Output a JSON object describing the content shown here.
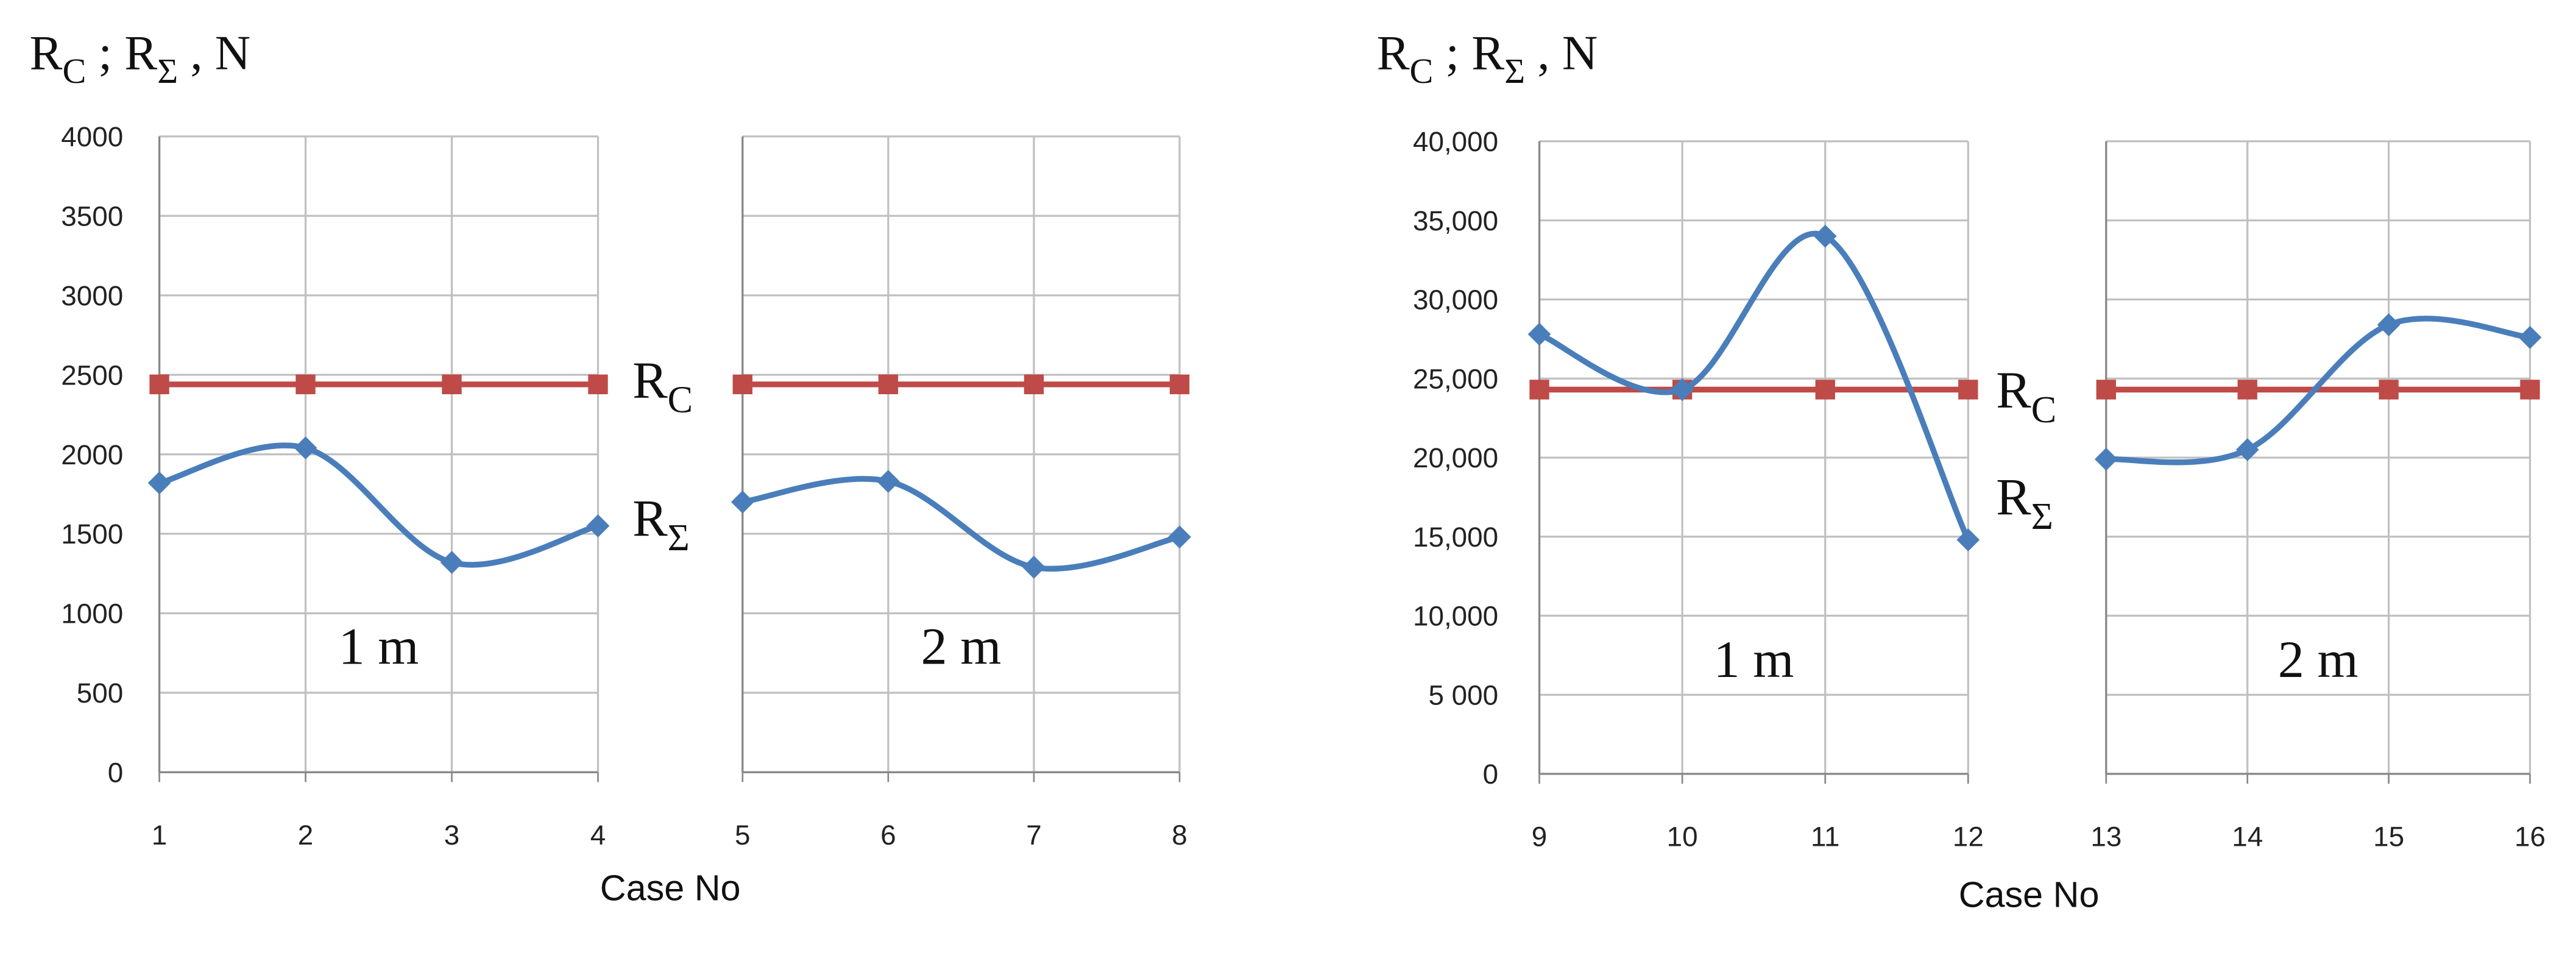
{
  "chart_data": [
    {
      "type": "line",
      "title_parts": [
        "R",
        "C",
        " ; R",
        "Σ",
        " , N"
      ],
      "x_label": "Case No",
      "ylim": [
        0,
        4000
      ],
      "yticks": [
        0,
        500,
        1000,
        1500,
        2000,
        2500,
        3000,
        3500,
        4000
      ],
      "grid": true,
      "series_styles": [
        {
          "name": [
            "R",
            "C"
          ],
          "color": "#be4b48",
          "marker": "square",
          "smooth": false
        },
        {
          "name": [
            "R",
            "Σ"
          ],
          "color": "#4a7ebb",
          "marker": "diamond",
          "smooth": true
        }
      ],
      "panels": [
        {
          "label": "1 m",
          "x": [
            1,
            2,
            3,
            4
          ],
          "series": [
            {
              "values": [
                2440,
                2440,
                2440,
                2440
              ]
            },
            {
              "values": [
                1820,
                2040,
                1320,
                1550
              ]
            }
          ]
        },
        {
          "label": "2 m",
          "x": [
            5,
            6,
            7,
            8
          ],
          "series": [
            {
              "values": [
                2440,
                2440,
                2440,
                2440
              ]
            },
            {
              "values": [
                1700,
                1830,
                1290,
                1480
              ]
            }
          ]
        }
      ]
    },
    {
      "type": "line",
      "title_parts": [
        "R",
        "C",
        " ; R",
        "Σ",
        " , N"
      ],
      "x_label": "Case No",
      "ylim": [
        0,
        40000
      ],
      "yticks": [
        0,
        {
          "value": 5000,
          "label": "5 000"
        },
        {
          "value": 10000,
          "label": "10,000"
        },
        {
          "value": 15000,
          "label": "15,000"
        },
        {
          "value": 20000,
          "label": "20,000"
        },
        {
          "value": 25000,
          "label": "25,000"
        },
        {
          "value": 30000,
          "label": "30,000"
        },
        {
          "value": 35000,
          "label": "35,000"
        },
        {
          "value": 40000,
          "label": "40,000"
        }
      ],
      "grid": true,
      "series_styles": [
        {
          "name": [
            "R",
            "C"
          ],
          "color": "#be4b48",
          "marker": "square",
          "smooth": false
        },
        {
          "name": [
            "R",
            "Σ"
          ],
          "color": "#4a7ebb",
          "marker": "diamond",
          "smooth": true
        }
      ],
      "panels": [
        {
          "label": "1 m",
          "x": [
            9,
            10,
            11,
            12
          ],
          "series": [
            {
              "values": [
                24300,
                24300,
                24300,
                24300
              ]
            },
            {
              "values": [
                27800,
                24300,
                34000,
                14800
              ]
            }
          ]
        },
        {
          "label": "2 m",
          "x": [
            13,
            14,
            15,
            16
          ],
          "series": [
            {
              "values": [
                24300,
                24300,
                24300,
                24300
              ]
            },
            {
              "values": [
                19900,
                20500,
                28400,
                27600
              ]
            }
          ]
        }
      ]
    }
  ]
}
